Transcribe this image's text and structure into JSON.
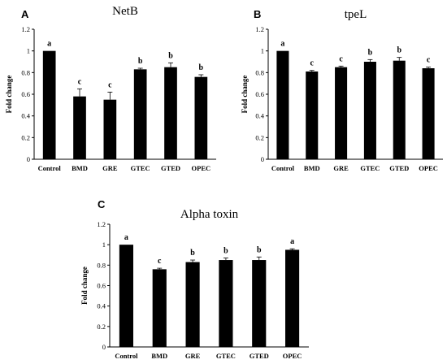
{
  "chart_data": [
    {
      "type": "bar",
      "panel": "A",
      "title": "NetB",
      "ylabel": "Fold change",
      "xlabel": "",
      "ylim": [
        0,
        1.2
      ],
      "yticks": [
        "0",
        "0.2",
        "0.4",
        "0.6",
        "0.8",
        "1",
        "1.2"
      ],
      "categories": [
        "Control",
        "BMD",
        "GRE",
        "GTEC",
        "GTED",
        "OPEC"
      ],
      "values": [
        1.0,
        0.58,
        0.55,
        0.83,
        0.85,
        0.76
      ],
      "errors": [
        0.0,
        0.07,
        0.07,
        0.01,
        0.04,
        0.02
      ],
      "letters": [
        "a",
        "c",
        "c",
        "b",
        "b",
        "b"
      ],
      "grid": false
    },
    {
      "type": "bar",
      "panel": "B",
      "title": "tpeL",
      "ylabel": "Fold change",
      "xlabel": "",
      "ylim": [
        0,
        1.2
      ],
      "yticks": [
        "0",
        "0.2",
        "0.4",
        "0.6",
        "0.8",
        "1",
        "1.2"
      ],
      "categories": [
        "Control",
        "BMD",
        "GRE",
        "GTEC",
        "GTED",
        "OPEC"
      ],
      "values": [
        1.0,
        0.81,
        0.85,
        0.9,
        0.91,
        0.84
      ],
      "errors": [
        0.0,
        0.01,
        0.01,
        0.02,
        0.03,
        0.01
      ],
      "letters": [
        "a",
        "c",
        "c",
        "b",
        "b",
        "c"
      ],
      "grid": false
    },
    {
      "type": "bar",
      "panel": "C",
      "title": "Alpha toxin",
      "ylabel": "Fold change",
      "xlabel": "",
      "ylim": [
        0,
        1.2
      ],
      "yticks": [
        "0",
        "0.2",
        "0.4",
        "0.6",
        "0.8",
        "1",
        "1.2"
      ],
      "categories": [
        "Control",
        "BMD",
        "GRE",
        "GTEC",
        "GTED",
        "OPEC"
      ],
      "values": [
        1.0,
        0.76,
        0.83,
        0.85,
        0.85,
        0.95
      ],
      "errors": [
        0.0,
        0.01,
        0.02,
        0.02,
        0.03,
        0.01
      ],
      "letters": [
        "a",
        "c",
        "b",
        "b",
        "b",
        "a"
      ],
      "grid": false
    }
  ]
}
